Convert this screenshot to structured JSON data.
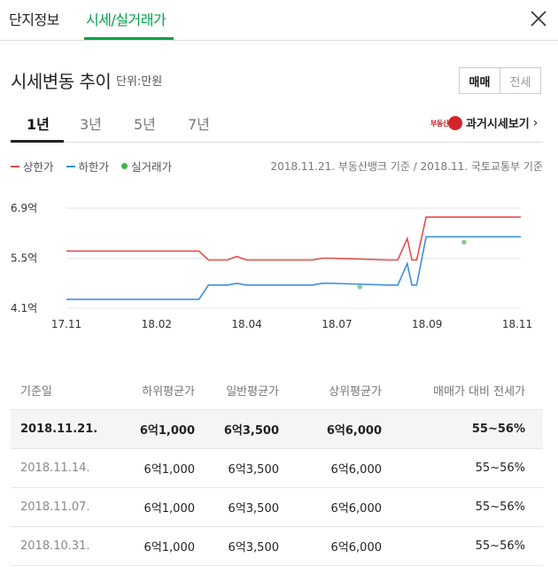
{
  "tabs": {
    "complex_info": "단지정보",
    "price_trade": "시세/실거래가"
  },
  "section": {
    "title": "시세변동 추이",
    "unit": "단위:만원",
    "toggle": [
      "매매",
      "전세"
    ],
    "active_toggle": "매매"
  },
  "period_tabs": [
    "1년",
    "3년",
    "5년",
    "7년"
  ],
  "active_period": "1년",
  "past_link": {
    "logo_text": "부동산뱅크",
    "label": "과거시세보기"
  },
  "legend": {
    "upper": "상한가",
    "lower": "하한가",
    "actual": "실거래가"
  },
  "source_note": "2018.11.21. 부동산뱅크 기준 / 2018.11. 국토교통부 기준",
  "colors": {
    "upper": "#e84c4c",
    "lower": "#3d8fe6",
    "actual": "#8ccf8c",
    "accent": "#03a04a"
  },
  "chart_data": {
    "type": "line",
    "y_ticks": [
      "6.9억",
      "5.5억",
      "4.1억"
    ],
    "y_tick_values": [
      6.9,
      5.5,
      4.1
    ],
    "x_ticks": [
      "17.11",
      "18.02",
      "18.04",
      "18.07",
      "18.09",
      "18.11"
    ],
    "ylim": [
      4.1,
      6.9
    ],
    "x": [
      0,
      14,
      15,
      17,
      18,
      19,
      26,
      27,
      28,
      34,
      35,
      36,
      36.5,
      37,
      38,
      48
    ],
    "series": [
      {
        "name": "상한가",
        "values": [
          5.7,
          5.7,
          5.45,
          5.45,
          5.55,
          5.45,
          5.45,
          5.5,
          5.5,
          5.45,
          5.45,
          6.05,
          5.45,
          5.45,
          6.65,
          6.65
        ]
      },
      {
        "name": "하한가",
        "values": [
          4.35,
          4.35,
          4.75,
          4.75,
          4.8,
          4.75,
          4.75,
          4.8,
          4.8,
          4.75,
          4.75,
          5.35,
          4.75,
          4.75,
          6.1,
          6.1
        ]
      }
    ],
    "actual_trades": [
      {
        "x": 31,
        "value": 4.7
      },
      {
        "x": 42,
        "value": 5.95
      }
    ]
  },
  "table": {
    "headers": [
      "기준일",
      "하위평균가",
      "일반평균가",
      "상위평균가",
      "매매가 대비 전세가"
    ],
    "rows": [
      [
        "2018.11.21.",
        "6억1,000",
        "6억3,500",
        "6억6,000",
        "55~56%"
      ],
      [
        "2018.11.14.",
        "6억1,000",
        "6억3,500",
        "6억6,000",
        "55~56%"
      ],
      [
        "2018.11.07.",
        "6억1,000",
        "6억3,500",
        "6억6,000",
        "55~56%"
      ],
      [
        "2018.10.31.",
        "6억1,000",
        "6억3,500",
        "6억6,000",
        "55~56%"
      ]
    ]
  }
}
